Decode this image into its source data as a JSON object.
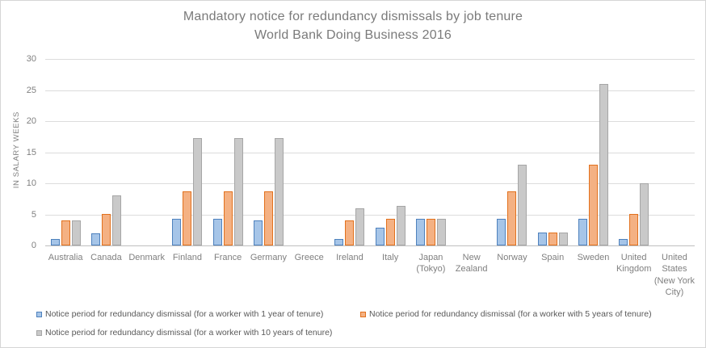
{
  "chart_data": {
    "type": "bar",
    "title": "Mandatory notice for redundancy dismissals by job tenure",
    "subtitle": "World Bank Doing Business 2016",
    "ylabel": "IN SALARY WEEKS",
    "ylim": [
      0,
      30
    ],
    "yticks": [
      0,
      5,
      10,
      15,
      20,
      25,
      30
    ],
    "grid": true,
    "legend_position": "bottom",
    "categories": [
      "Australia",
      "Canada",
      "Denmark",
      "Finland",
      "France",
      "Germany",
      "Greece",
      "Ireland",
      "Italy",
      "Japan (Tokyo)",
      "New Zealand",
      "Norway",
      "Spain",
      "Sweden",
      "United Kingdom",
      "United States (New York City)"
    ],
    "series": [
      {
        "name": "Notice period for redundancy dismissal (for a worker with 1 year of tenure)",
        "fill": "#A6C5E8",
        "stroke": "#4E81BD",
        "values": [
          1,
          2,
          0,
          4.3,
          4.3,
          4,
          0,
          1,
          2.9,
          4.3,
          0,
          4.3,
          2.1,
          4.3,
          1,
          0
        ]
      },
      {
        "name": "Notice period for redundancy dismissal (for a worker with 5 years of tenure)",
        "fill": "#F4B183",
        "stroke": "#E2711D",
        "values": [
          4,
          5,
          0,
          8.7,
          8.7,
          8.7,
          0,
          4,
          4.3,
          4.3,
          0,
          8.7,
          2.1,
          13,
          5,
          0
        ]
      },
      {
        "name": "Notice period for redundancy dismissal (for a worker with 10 years of tenure)",
        "fill": "#C9C9C9",
        "stroke": "#A6A6A6",
        "values": [
          4,
          8,
          0,
          17.3,
          17.3,
          17.3,
          0,
          6,
          6.4,
          4.3,
          0,
          13,
          2.1,
          26,
          10,
          0
        ]
      }
    ],
    "colors": {
      "gridline": "#dcdcdc",
      "axis_line": "#bfbfbf",
      "title_text": "#7a7a7a",
      "axis_text": "#7f7f7f",
      "legend_text": "#595959"
    }
  }
}
